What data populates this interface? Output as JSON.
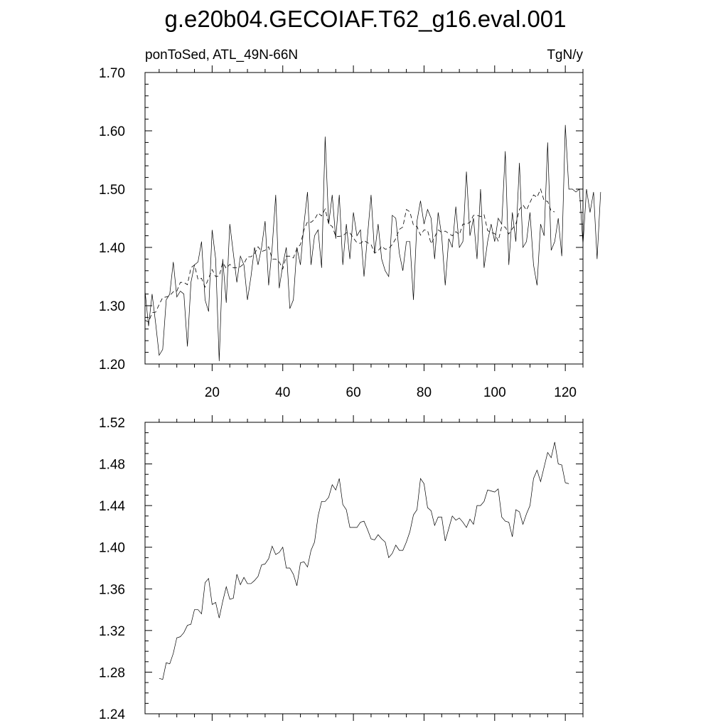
{
  "title": "g.e20b04.GECOIAF.T62_g16.eval.001",
  "left_subtitle": "ponToSed, ATL_49N-66N",
  "right_subtitle": "TgN/y",
  "chart_data": [
    {
      "type": "line",
      "x_start": 1,
      "x_step": 1,
      "xlim": [
        1,
        125
      ],
      "ylim": [
        1.2,
        1.7
      ],
      "x_ticks": [
        20,
        40,
        60,
        80,
        100,
        120
      ],
      "y_ticks": [
        1.2,
        1.3,
        1.4,
        1.5,
        1.6,
        1.7
      ],
      "y_tick_labels": [
        "1.20",
        "1.30",
        "1.40",
        "1.50",
        "1.60",
        "1.70"
      ],
      "series": [
        {
          "style": "solid",
          "values": [
            1.325,
            1.265,
            1.32,
            1.27,
            1.215,
            1.225,
            1.31,
            1.32,
            1.375,
            1.315,
            1.325,
            1.32,
            1.23,
            1.34,
            1.37,
            1.375,
            1.41,
            1.31,
            1.29,
            1.43,
            1.38,
            1.205,
            1.38,
            1.305,
            1.44,
            1.39,
            1.34,
            1.385,
            1.37,
            1.31,
            1.35,
            1.4,
            1.37,
            1.4,
            1.445,
            1.335,
            1.4,
            1.49,
            1.33,
            1.37,
            1.4,
            1.295,
            1.31,
            1.4,
            1.37,
            1.44,
            1.495,
            1.37,
            1.42,
            1.43,
            1.365,
            1.59,
            1.44,
            1.49,
            1.415,
            1.49,
            1.37,
            1.44,
            1.38,
            1.46,
            1.42,
            1.43,
            1.35,
            1.42,
            1.49,
            1.39,
            1.44,
            1.38,
            1.36,
            1.35,
            1.455,
            1.45,
            1.39,
            1.36,
            1.41,
            1.41,
            1.31,
            1.445,
            1.48,
            1.44,
            1.465,
            1.45,
            1.38,
            1.46,
            1.42,
            1.335,
            1.415,
            1.4,
            1.47,
            1.4,
            1.41,
            1.53,
            1.42,
            1.45,
            1.38,
            1.5,
            1.365,
            1.41,
            1.44,
            1.41,
            1.45,
            1.44,
            1.565,
            1.37,
            1.46,
            1.41,
            1.545,
            1.4,
            1.41,
            1.46,
            1.37,
            1.335,
            1.44,
            1.42,
            1.58,
            1.395,
            1.41,
            1.45,
            1.385,
            1.61,
            1.5,
            1.5,
            1.495,
            1.5,
            1.405,
            1.5,
            1.46,
            1.495,
            1.38,
            1.495
          ]
        },
        {
          "style": "dashed",
          "values": [
            1.275,
            1.272,
            1.288,
            1.289,
            1.302,
            1.314,
            1.315,
            1.317,
            1.324,
            1.325,
            1.34,
            1.34,
            1.336,
            1.365,
            1.37,
            1.345,
            1.347,
            1.332,
            1.347,
            1.362,
            1.35,
            1.351,
            1.374,
            1.364,
            1.371,
            1.365,
            1.365,
            1.367,
            1.372,
            1.384,
            1.384,
            1.389,
            1.401,
            1.393,
            1.395,
            1.401,
            1.38,
            1.38,
            1.375,
            1.363,
            1.385,
            1.385,
            1.382,
            1.398,
            1.405,
            1.43,
            1.444,
            1.443,
            1.448,
            1.459,
            1.454,
            1.466,
            1.44,
            1.436,
            1.419,
            1.419,
            1.42,
            1.425,
            1.425,
            1.416,
            1.408,
            1.407,
            1.412,
            1.408,
            1.405,
            1.39,
            1.394,
            1.402,
            1.397,
            1.398,
            1.405,
            1.415,
            1.431,
            1.435,
            1.465,
            1.461,
            1.438,
            1.436,
            1.421,
            1.43,
            1.429,
            1.406,
            1.418,
            1.43,
            1.426,
            1.428,
            1.424,
            1.42,
            1.427,
            1.422,
            1.44,
            1.44,
            1.443,
            1.455,
            1.455,
            1.453,
            1.456,
            1.429,
            1.425,
            1.424,
            1.411,
            1.436,
            1.435,
            1.423,
            1.432,
            1.44,
            1.465,
            1.473,
            1.464,
            1.477,
            1.49,
            1.486,
            1.5,
            1.48,
            1.479,
            1.462,
            1.461
          ]
        }
      ]
    },
    {
      "type": "line",
      "x_start": 5,
      "x_step": 1,
      "xlim": [
        1,
        125
      ],
      "ylim": [
        1.24,
        1.52
      ],
      "x_ticks": [
        20,
        40,
        60,
        80,
        100,
        120
      ],
      "y_ticks": [
        1.24,
        1.28,
        1.32,
        1.36,
        1.4,
        1.44,
        1.48,
        1.52
      ],
      "y_tick_labels": [
        "1.24",
        "1.28",
        "1.32",
        "1.36",
        "1.40",
        "1.44",
        "1.48",
        "1.52"
      ],
      "series": [
        {
          "style": "solid",
          "values": [
            1.274,
            1.273,
            1.289,
            1.288,
            1.298,
            1.313,
            1.314,
            1.318,
            1.325,
            1.326,
            1.34,
            1.34,
            1.336,
            1.366,
            1.37,
            1.345,
            1.347,
            1.332,
            1.348,
            1.362,
            1.35,
            1.351,
            1.374,
            1.364,
            1.371,
            1.365,
            1.365,
            1.368,
            1.372,
            1.383,
            1.384,
            1.389,
            1.401,
            1.393,
            1.395,
            1.4,
            1.38,
            1.38,
            1.374,
            1.363,
            1.385,
            1.386,
            1.381,
            1.397,
            1.405,
            1.43,
            1.444,
            1.444,
            1.448,
            1.46,
            1.455,
            1.466,
            1.441,
            1.436,
            1.419,
            1.419,
            1.419,
            1.424,
            1.425,
            1.417,
            1.408,
            1.407,
            1.412,
            1.408,
            1.405,
            1.39,
            1.394,
            1.402,
            1.397,
            1.397,
            1.405,
            1.415,
            1.431,
            1.436,
            1.466,
            1.461,
            1.438,
            1.435,
            1.421,
            1.429,
            1.429,
            1.406,
            1.418,
            1.43,
            1.426,
            1.428,
            1.424,
            1.419,
            1.427,
            1.422,
            1.44,
            1.44,
            1.444,
            1.455,
            1.454,
            1.453,
            1.456,
            1.429,
            1.425,
            1.424,
            1.41,
            1.436,
            1.434,
            1.422,
            1.432,
            1.44,
            1.466,
            1.474,
            1.463,
            1.477,
            1.491,
            1.486,
            1.501,
            1.48,
            1.479,
            1.462,
            1.461
          ]
        }
      ]
    }
  ]
}
